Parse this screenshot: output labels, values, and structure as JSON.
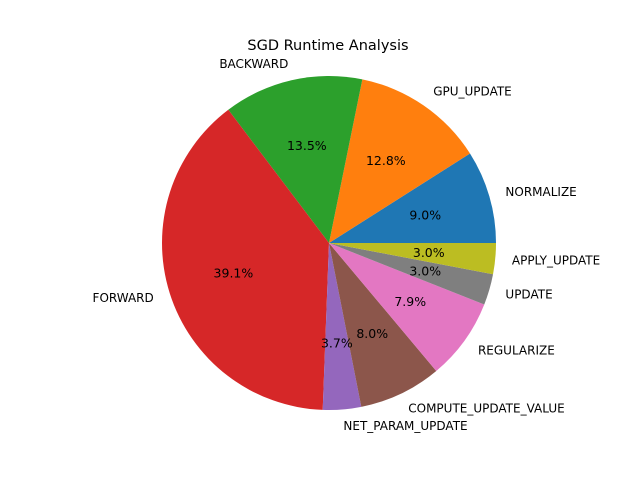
{
  "chart_data": {
    "type": "pie",
    "title": "SGD Runtime Analysis",
    "slices": [
      {
        "label": "NORMALIZE",
        "value": 9.0,
        "pct_label": "9.0%",
        "color": "#1f77b4"
      },
      {
        "label": "GPU_UPDATE",
        "value": 12.8,
        "pct_label": "12.8%",
        "color": "#ff7f0e"
      },
      {
        "label": "BACKWARD",
        "value": 13.5,
        "pct_label": "13.5%",
        "color": "#2ca02c"
      },
      {
        "label": "FORWARD",
        "value": 39.1,
        "pct_label": "39.1%",
        "color": "#d62728"
      },
      {
        "label": "NET_PARAM_UPDATE",
        "value": 3.7,
        "pct_label": "3.7%",
        "color": "#9467bd"
      },
      {
        "label": "COMPUTE_UPDATE_VALUE",
        "value": 8.0,
        "pct_label": "8.0%",
        "color": "#8c564b"
      },
      {
        "label": "REGULARIZE",
        "value": 7.9,
        "pct_label": "7.9%",
        "color": "#e377c2"
      },
      {
        "label": "UPDATE",
        "value": 3.0,
        "pct_label": "3.0%",
        "color": "#7f7f7f"
      },
      {
        "label": "APPLY_UPDATE",
        "value": 3.0,
        "pct_label": "3.0%",
        "color": "#bcbd22"
      }
    ]
  }
}
